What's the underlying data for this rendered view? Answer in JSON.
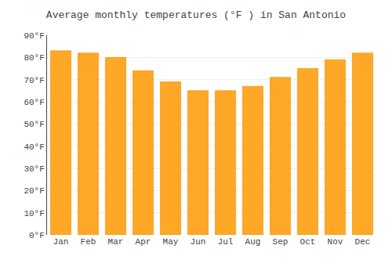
{
  "chart_data": {
    "type": "bar",
    "title": "Average monthly temperatures (°F ) in San Antonio",
    "categories": [
      "Jan",
      "Feb",
      "Mar",
      "Apr",
      "May",
      "Jun",
      "Jul",
      "Aug",
      "Sep",
      "Oct",
      "Nov",
      "Dec"
    ],
    "values": [
      83,
      82,
      80,
      74,
      69,
      65,
      65,
      67,
      71,
      75,
      79,
      82
    ],
    "color": "#FFA726",
    "ylim": [
      0,
      90
    ],
    "yticks": [
      {
        "value": 0,
        "label": "0°F"
      },
      {
        "value": 10,
        "label": "10°F"
      },
      {
        "value": 20,
        "label": "20°F"
      },
      {
        "value": 30,
        "label": "30°F"
      },
      {
        "value": 40,
        "label": "40°F"
      },
      {
        "value": 50,
        "label": "50°F"
      },
      {
        "value": 60,
        "label": "60°F"
      },
      {
        "value": 70,
        "label": "70°F"
      },
      {
        "value": 80,
        "label": "80°F"
      },
      {
        "value": 90,
        "label": "90°F"
      }
    ],
    "grid": true
  }
}
